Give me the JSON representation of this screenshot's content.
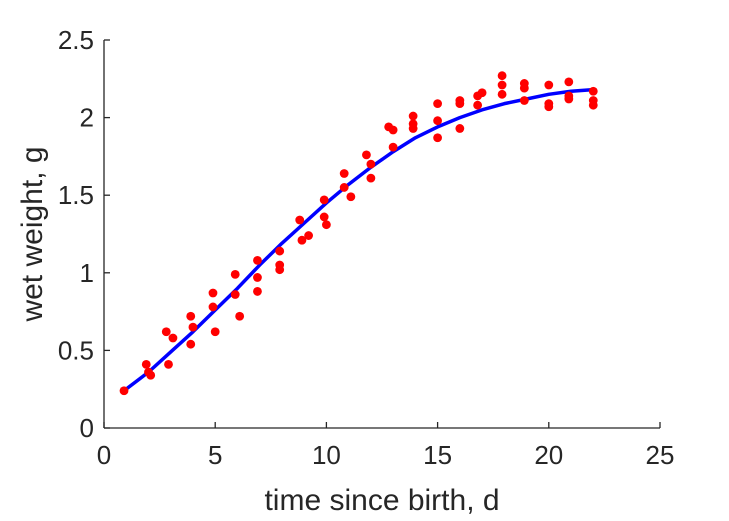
{
  "chart_data": {
    "type": "scatter",
    "title": "",
    "xlabel": "time since birth, d",
    "ylabel": "wet weight, g",
    "xlim": [
      0,
      25
    ],
    "ylim": [
      0,
      2.5
    ],
    "xticks": [
      0,
      5,
      10,
      15,
      20,
      25
    ],
    "xtick_labels": [
      "0",
      "5",
      "10",
      "15",
      "20",
      "25"
    ],
    "yticks": [
      0,
      0.5,
      1,
      1.5,
      2,
      2.5
    ],
    "ytick_labels": [
      "0",
      "0.5",
      "1",
      "1.5",
      "2",
      "2.5"
    ],
    "grid": false,
    "legend": "none",
    "series": [
      {
        "kind": "scatter",
        "color": "#ff0000",
        "points": [
          [
            0.9,
            0.24
          ],
          [
            1.9,
            0.41
          ],
          [
            2.0,
            0.36
          ],
          [
            2.1,
            0.34
          ],
          [
            2.8,
            0.62
          ],
          [
            2.9,
            0.41
          ],
          [
            3.1,
            0.58
          ],
          [
            3.9,
            0.72
          ],
          [
            3.9,
            0.54
          ],
          [
            4.0,
            0.65
          ],
          [
            4.9,
            0.87
          ],
          [
            4.9,
            0.78
          ],
          [
            5.0,
            0.62
          ],
          [
            5.9,
            0.99
          ],
          [
            5.9,
            0.86
          ],
          [
            6.1,
            0.72
          ],
          [
            6.9,
            1.08
          ],
          [
            6.9,
            0.97
          ],
          [
            6.9,
            0.88
          ],
          [
            7.9,
            1.14
          ],
          [
            7.9,
            1.05
          ],
          [
            7.9,
            1.02
          ],
          [
            8.8,
            1.34
          ],
          [
            8.9,
            1.21
          ],
          [
            9.2,
            1.24
          ],
          [
            9.9,
            1.47
          ],
          [
            9.9,
            1.36
          ],
          [
            10.0,
            1.31
          ],
          [
            10.8,
            1.64
          ],
          [
            10.8,
            1.55
          ],
          [
            11.1,
            1.49
          ],
          [
            11.8,
            1.76
          ],
          [
            12.0,
            1.7
          ],
          [
            12.0,
            1.61
          ],
          [
            12.8,
            1.94
          ],
          [
            13.0,
            1.92
          ],
          [
            13.0,
            1.81
          ],
          [
            13.9,
            2.01
          ],
          [
            13.9,
            1.96
          ],
          [
            13.9,
            1.93
          ],
          [
            15.0,
            2.09
          ],
          [
            15.0,
            1.98
          ],
          [
            15.0,
            1.87
          ],
          [
            16.0,
            2.11
          ],
          [
            16.0,
            2.09
          ],
          [
            16.0,
            1.93
          ],
          [
            16.8,
            2.14
          ],
          [
            17.0,
            2.16
          ],
          [
            16.8,
            2.08
          ],
          [
            17.9,
            2.27
          ],
          [
            17.9,
            2.21
          ],
          [
            17.9,
            2.15
          ],
          [
            18.9,
            2.22
          ],
          [
            18.9,
            2.19
          ],
          [
            18.9,
            2.11
          ],
          [
            20.0,
            2.21
          ],
          [
            20.0,
            2.09
          ],
          [
            20.0,
            2.07
          ],
          [
            20.9,
            2.23
          ],
          [
            20.9,
            2.14
          ],
          [
            20.9,
            2.12
          ],
          [
            22.0,
            2.17
          ],
          [
            22.0,
            2.11
          ],
          [
            22.0,
            2.08
          ]
        ]
      },
      {
        "kind": "line",
        "color": "#0000ff",
        "points": [
          [
            0.9,
            0.24
          ],
          [
            2.0,
            0.36
          ],
          [
            3.0,
            0.49
          ],
          [
            4.0,
            0.62
          ],
          [
            5.0,
            0.76
          ],
          [
            6.0,
            0.9
          ],
          [
            7.0,
            1.05
          ],
          [
            8.0,
            1.19
          ],
          [
            9.0,
            1.32
          ],
          [
            10.0,
            1.45
          ],
          [
            11.0,
            1.57
          ],
          [
            12.0,
            1.68
          ],
          [
            13.0,
            1.78
          ],
          [
            14.0,
            1.87
          ],
          [
            15.0,
            1.94
          ],
          [
            16.0,
            2.0
          ],
          [
            17.0,
            2.05
          ],
          [
            18.0,
            2.09
          ],
          [
            19.0,
            2.12
          ],
          [
            20.0,
            2.15
          ],
          [
            21.0,
            2.17
          ],
          [
            22.0,
            2.18
          ]
        ]
      }
    ]
  }
}
